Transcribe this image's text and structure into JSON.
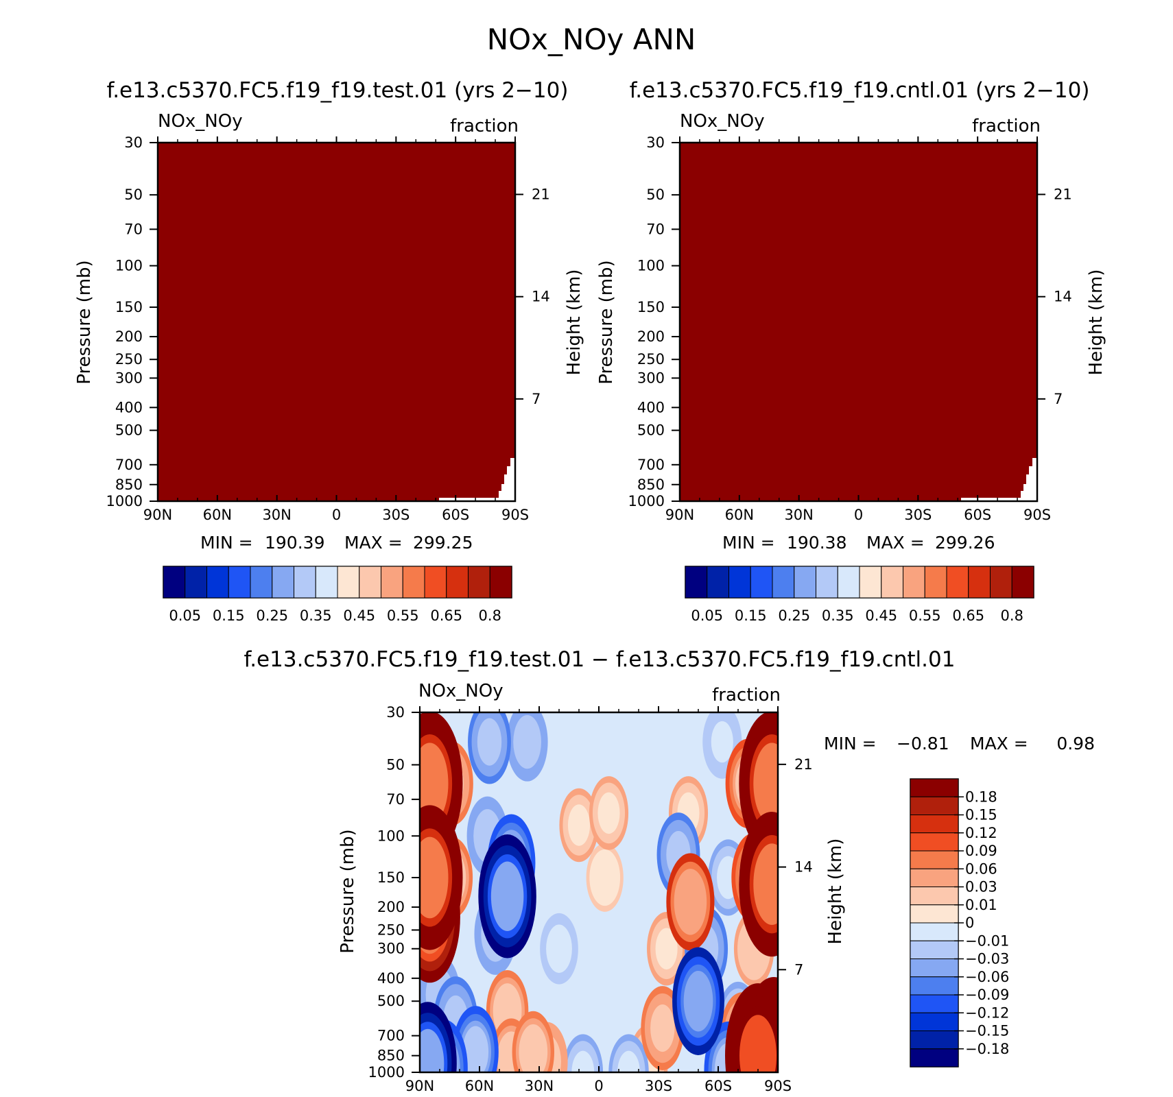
{
  "figure": {
    "title": "NOx_NOy ANN",
    "colors": {
      "background": "#ffffff",
      "abs_palette": [
        "#000080",
        "#0022a8",
        "#0035d8",
        "#1f55f5",
        "#4d7fef",
        "#86a8f2",
        "#b3c9f7",
        "#d8e8fb",
        "#fde6d3",
        "#fcc8ae",
        "#f9a37f",
        "#f57b4b",
        "#f04e23",
        "#d6300f",
        "#b0200c",
        "#8b0000"
      ],
      "diff_palette": [
        "#000080",
        "#0022a8",
        "#0035d8",
        "#1f55f5",
        "#4d7fef",
        "#86a8f2",
        "#b3c9f7",
        "#d8e8fb",
        "#fde6d3",
        "#fcc8ae",
        "#f9a37f",
        "#f57b4b",
        "#f04e23",
        "#d6300f",
        "#b0200c",
        "#8b0000"
      ]
    }
  },
  "chart_data": [
    {
      "type": "heatmap",
      "id": "test",
      "title": "f.e13.c5370.FC5.f19_f19.test.01 (yrs 2−10)",
      "left_label": "NOx_NOy",
      "right_label": "fraction",
      "xlabel": "",
      "ylabel": "Pressure (mb)",
      "y2label": "Height (km)",
      "xticks": [
        "90N",
        "60N",
        "30N",
        "0",
        "30S",
        "60S",
        "90S"
      ],
      "x_values": [
        90,
        60,
        30,
        0,
        -30,
        -60,
        -90
      ],
      "xlim": [
        90,
        -90
      ],
      "yticks": [
        "30",
        "50",
        "70",
        "100",
        "150",
        "200",
        "250",
        "300",
        "400",
        "500",
        "700",
        "850",
        "1000"
      ],
      "y_values": [
        30,
        50,
        70,
        100,
        150,
        200,
        250,
        300,
        400,
        500,
        700,
        850,
        1000
      ],
      "ylim": [
        1000,
        30
      ],
      "y2ticks": [
        "21",
        "14",
        "7"
      ],
      "y2_values": [
        21,
        14,
        7
      ],
      "field": "near-uniform, all above top contour level (>0.8)",
      "stats": {
        "min_label": "MIN =",
        "min": "190.39",
        "max_label": "MAX =",
        "max": "299.25"
      },
      "colorbar": {
        "orientation": "horizontal",
        "tick_labels": [
          "0.05",
          "0.15",
          "0.25",
          "0.35",
          "0.45",
          "0.55",
          "0.65",
          "0.8"
        ]
      }
    },
    {
      "type": "heatmap",
      "id": "cntl",
      "title": "f.e13.c5370.FC5.f19_f19.cntl.01 (yrs 2−10)",
      "left_label": "NOx_NOy",
      "right_label": "fraction",
      "xlabel": "",
      "ylabel": "Pressure (mb)",
      "y2label": "Height (km)",
      "xticks": [
        "90N",
        "60N",
        "30N",
        "0",
        "30S",
        "60S",
        "90S"
      ],
      "x_values": [
        90,
        60,
        30,
        0,
        -30,
        -60,
        -90
      ],
      "xlim": [
        90,
        -90
      ],
      "yticks": [
        "30",
        "50",
        "70",
        "100",
        "150",
        "200",
        "250",
        "300",
        "400",
        "500",
        "700",
        "850",
        "1000"
      ],
      "y_values": [
        30,
        50,
        70,
        100,
        150,
        200,
        250,
        300,
        400,
        500,
        700,
        850,
        1000
      ],
      "ylim": [
        1000,
        30
      ],
      "y2ticks": [
        "21",
        "14",
        "7"
      ],
      "y2_values": [
        21,
        14,
        7
      ],
      "field": "near-uniform, all above top contour level (>0.8)",
      "stats": {
        "min_label": "MIN =",
        "min": "190.38",
        "max_label": "MAX =",
        "max": "299.26"
      },
      "colorbar": {
        "orientation": "horizontal",
        "tick_labels": [
          "0.05",
          "0.15",
          "0.25",
          "0.35",
          "0.45",
          "0.55",
          "0.65",
          "0.8"
        ]
      }
    },
    {
      "type": "heatmap",
      "id": "diff",
      "title": "f.e13.c5370.FC5.f19_f19.test.01 − f.e13.c5370.FC5.f19_f19.cntl.01",
      "left_label": "NOx_NOy",
      "right_label": "fraction",
      "xlabel": "",
      "ylabel": "Pressure (mb)",
      "y2label": "Height (km)",
      "xticks": [
        "90N",
        "60N",
        "30N",
        "0",
        "30S",
        "60S",
        "90S"
      ],
      "x_values": [
        90,
        60,
        30,
        0,
        -30,
        -60,
        -90
      ],
      "xlim": [
        90,
        -90
      ],
      "yticks": [
        "30",
        "50",
        "70",
        "100",
        "150",
        "200",
        "250",
        "300",
        "400",
        "500",
        "700",
        "850",
        "1000"
      ],
      "y_values": [
        30,
        50,
        70,
        100,
        150,
        200,
        250,
        300,
        400,
        500,
        700,
        850,
        1000
      ],
      "ylim": [
        1000,
        30
      ],
      "y2ticks": [
        "21",
        "14",
        "7"
      ],
      "y2_values": [
        21,
        14,
        7
      ],
      "stats": {
        "min_label": "MIN =",
        "min": "−0.81",
        "max_label": "MAX =",
        "max": "0.98"
      },
      "colorbar": {
        "orientation": "vertical",
        "tick_labels": [
          "0.18",
          "0.15",
          "0.12",
          "0.09",
          "0.06",
          "0.03",
          "0.01",
          "0",
          "−0.01",
          "−0.03",
          "−0.06",
          "−0.09",
          "−0.12",
          "−0.15",
          "−0.18"
        ]
      },
      "features": [
        {
          "lat": 85,
          "p": 60,
          "value": 0.3
        },
        {
          "lat": 85,
          "p": 150,
          "value": 0.3
        },
        {
          "lat": 85,
          "p": 220,
          "value": 0.25
        },
        {
          "lat": 74,
          "p": 60,
          "value": 0.07
        },
        {
          "lat": 74,
          "p": 150,
          "value": 0.06
        },
        {
          "lat": 55,
          "p": 40,
          "value": -0.07
        },
        {
          "lat": 46,
          "p": 180,
          "value": -0.22
        },
        {
          "lat": 44,
          "p": 130,
          "value": -0.12
        },
        {
          "lat": 52,
          "p": 260,
          "value": -0.06
        },
        {
          "lat": 36,
          "p": 40,
          "value": -0.05
        },
        {
          "lat": 56,
          "p": 100,
          "value": -0.05
        },
        {
          "lat": 80,
          "p": 470,
          "value": -0.05
        },
        {
          "lat": 72,
          "p": 600,
          "value": -0.08
        },
        {
          "lat": 62,
          "p": 820,
          "value": -0.1
        },
        {
          "lat": 86,
          "p": 920,
          "value": -0.22
        },
        {
          "lat": 78,
          "p": 960,
          "value": -0.12
        },
        {
          "lat": 46,
          "p": 550,
          "value": 0.06
        },
        {
          "lat": 44,
          "p": 880,
          "value": 0.06
        },
        {
          "lat": 33,
          "p": 820,
          "value": 0.06
        },
        {
          "lat": 26,
          "p": 900,
          "value": 0.05
        },
        {
          "lat": 10,
          "p": 90,
          "value": 0.03
        },
        {
          "lat": -5,
          "p": 80,
          "value": 0.03
        },
        {
          "lat": -3,
          "p": 150,
          "value": 0.01
        },
        {
          "lat": 20,
          "p": 300,
          "value": -0.02
        },
        {
          "lat": 8,
          "p": 1000,
          "value": -0.04
        },
        {
          "lat": -15,
          "p": 1000,
          "value": -0.04
        },
        {
          "lat": -40,
          "p": 120,
          "value": -0.07
        },
        {
          "lat": -34,
          "p": 300,
          "value": 0.03
        },
        {
          "lat": -32,
          "p": 650,
          "value": 0.07
        },
        {
          "lat": -25,
          "p": 900,
          "value": 0.03
        },
        {
          "lat": -46,
          "p": 190,
          "value": 0.12
        },
        {
          "lat": -45,
          "p": 80,
          "value": 0.03
        },
        {
          "lat": -50,
          "p": 500,
          "value": -0.16
        },
        {
          "lat": -54,
          "p": 300,
          "value": -0.07
        },
        {
          "lat": -62,
          "p": 40,
          "value": -0.03
        },
        {
          "lat": -65,
          "p": 150,
          "value": -0.04
        },
        {
          "lat": -70,
          "p": 600,
          "value": -0.04
        },
        {
          "lat": -75,
          "p": 60,
          "value": 0.09
        },
        {
          "lat": -78,
          "p": 150,
          "value": 0.09
        },
        {
          "lat": -78,
          "p": 300,
          "value": 0.04
        },
        {
          "lat": -87,
          "p": 60,
          "value": 0.3
        },
        {
          "lat": -87,
          "p": 160,
          "value": 0.3
        },
        {
          "lat": -80,
          "p": 850,
          "value": 0.4
        },
        {
          "lat": -88,
          "p": 800,
          "value": 0.35
        },
        {
          "lat": -72,
          "p": 700,
          "value": 0.08
        },
        {
          "lat": -65,
          "p": 980,
          "value": -0.12
        }
      ]
    }
  ]
}
